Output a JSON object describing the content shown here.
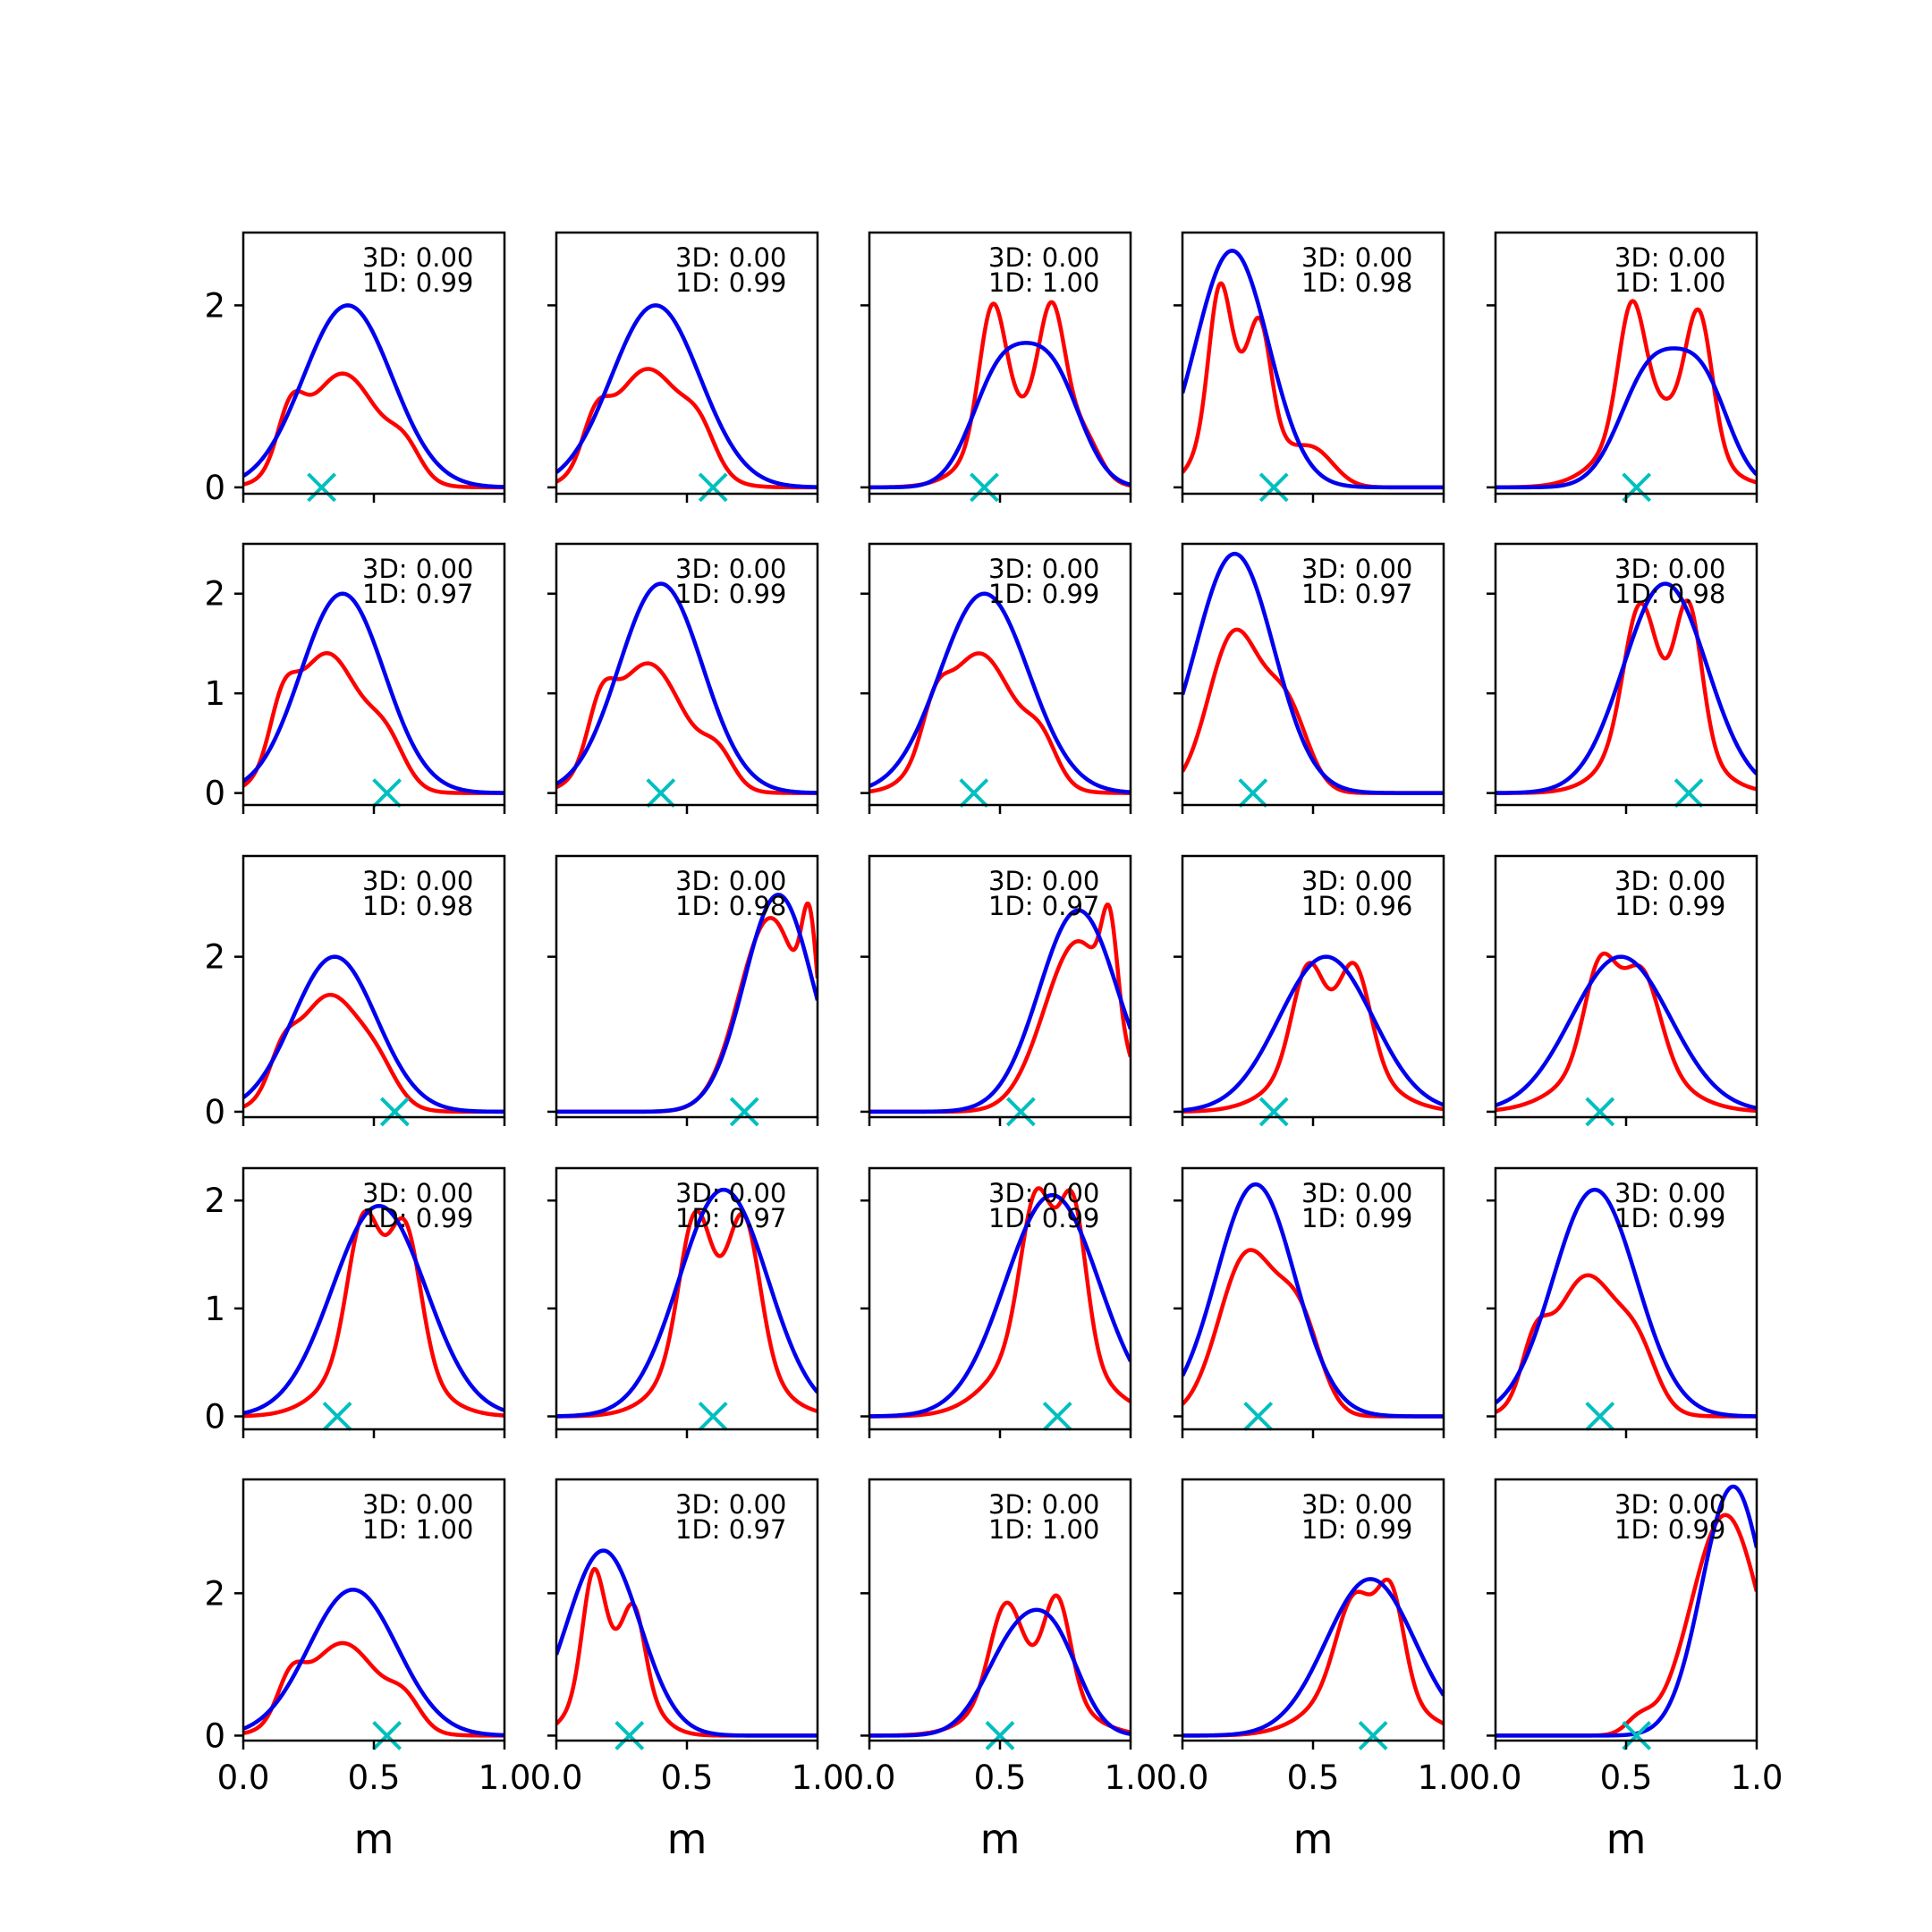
{
  "figure": {
    "colors": {
      "red": "#ff0000",
      "blue": "#0000ee",
      "marker": "#00bfbf",
      "axes": "#000000"
    },
    "annotation_prefix_3d": "3D: ",
    "annotation_prefix_1d": "1D: "
  },
  "chart_data": {
    "type": "line",
    "layout": "5x5 grid of small multiples",
    "xlabel": "m",
    "xlim": [
      0,
      1
    ],
    "xticks": [
      0.0,
      0.5,
      1.0
    ],
    "xtick_labels": [
      "0.0",
      "0.5",
      "1.0"
    ],
    "series_names": [
      "red",
      "blue"
    ],
    "rows": [
      {
        "ylim": [
          -0.07,
          2.8
        ],
        "yticks": [
          0,
          2
        ],
        "ytick_labels": [
          "0",
          "2"
        ]
      },
      {
        "ylim": [
          -0.12,
          2.5
        ],
        "yticks": [
          0,
          1,
          2
        ],
        "ytick_labels": [
          "0",
          "1",
          "2"
        ]
      },
      {
        "ylim": [
          -0.07,
          3.3
        ],
        "yticks": [
          0,
          2
        ],
        "ytick_labels": [
          "0",
          "2"
        ]
      },
      {
        "ylim": [
          -0.12,
          2.3
        ],
        "yticks": [
          0,
          1,
          2
        ],
        "ytick_labels": [
          "0",
          "1",
          "2"
        ]
      },
      {
        "ylim": [
          -0.07,
          3.6
        ],
        "yticks": [
          0,
          2
        ],
        "ytick_labels": [
          "0",
          "2"
        ]
      }
    ],
    "panels": [
      {
        "row": 0,
        "col": 0,
        "label_3d": "0.00",
        "label_1d": "0.99",
        "marker_x": 0.3,
        "red": [
          {
            "x": 0.38,
            "h": 1.25,
            "w": 0.14
          },
          {
            "x": 0.18,
            "h": 0.55,
            "w": 0.05
          },
          {
            "x": 0.62,
            "h": 0.3,
            "w": 0.06
          }
        ],
        "blue": [
          {
            "x": 0.4,
            "h": 2.0,
            "w": 0.17
          }
        ]
      },
      {
        "row": 0,
        "col": 1,
        "label_3d": "0.00",
        "label_1d": "0.99",
        "marker_x": 0.6,
        "red": [
          {
            "x": 0.35,
            "h": 1.3,
            "w": 0.14
          },
          {
            "x": 0.15,
            "h": 0.45,
            "w": 0.05
          },
          {
            "x": 0.55,
            "h": 0.35,
            "w": 0.06
          }
        ],
        "blue": [
          {
            "x": 0.38,
            "h": 2.0,
            "w": 0.17
          }
        ]
      },
      {
        "row": 0,
        "col": 2,
        "label_3d": "0.00",
        "label_1d": "1.00",
        "marker_x": 0.44,
        "red": [
          {
            "x": 0.47,
            "h": 1.4,
            "w": 0.05
          },
          {
            "x": 0.7,
            "h": 1.4,
            "w": 0.05
          },
          {
            "x": 0.58,
            "h": 0.8,
            "w": 0.15
          },
          {
            "x": 0.82,
            "h": 0.4,
            "w": 0.06
          }
        ],
        "blue": [
          {
            "x": 0.5,
            "h": 1.2,
            "w": 0.11
          },
          {
            "x": 0.7,
            "h": 1.2,
            "w": 0.11
          }
        ]
      },
      {
        "row": 0,
        "col": 3,
        "label_3d": "0.00",
        "label_1d": "0.98",
        "marker_x": 0.35,
        "red": [
          {
            "x": 0.14,
            "h": 1.3,
            "w": 0.04
          },
          {
            "x": 0.3,
            "h": 0.9,
            "w": 0.04
          },
          {
            "x": 0.22,
            "h": 1.2,
            "w": 0.11
          },
          {
            "x": 0.5,
            "h": 0.4,
            "w": 0.08
          }
        ],
        "blue": [
          {
            "x": 0.19,
            "h": 2.6,
            "w": 0.14
          }
        ]
      },
      {
        "row": 0,
        "col": 4,
        "label_3d": "0.00",
        "label_1d": "1.00",
        "marker_x": 0.54,
        "red": [
          {
            "x": 0.52,
            "h": 1.3,
            "w": 0.05
          },
          {
            "x": 0.78,
            "h": 1.4,
            "w": 0.05
          },
          {
            "x": 0.62,
            "h": 0.9,
            "w": 0.16
          }
        ],
        "blue": [
          {
            "x": 0.6,
            "h": 1.3,
            "w": 0.12
          },
          {
            "x": 0.8,
            "h": 1.0,
            "w": 0.1
          }
        ]
      },
      {
        "row": 1,
        "col": 0,
        "label_3d": "0.00",
        "label_1d": "0.97",
        "marker_x": 0.55,
        "red": [
          {
            "x": 0.32,
            "h": 1.4,
            "w": 0.13
          },
          {
            "x": 0.15,
            "h": 0.5,
            "w": 0.05
          },
          {
            "x": 0.55,
            "h": 0.4,
            "w": 0.07
          }
        ],
        "blue": [
          {
            "x": 0.38,
            "h": 2.0,
            "w": 0.16
          }
        ]
      },
      {
        "row": 1,
        "col": 1,
        "label_3d": "0.00",
        "label_1d": "0.99",
        "marker_x": 0.4,
        "red": [
          {
            "x": 0.35,
            "h": 1.3,
            "w": 0.14
          },
          {
            "x": 0.17,
            "h": 0.5,
            "w": 0.05
          },
          {
            "x": 0.62,
            "h": 0.3,
            "w": 0.06
          }
        ],
        "blue": [
          {
            "x": 0.4,
            "h": 2.1,
            "w": 0.16
          }
        ]
      },
      {
        "row": 1,
        "col": 2,
        "label_3d": "0.00",
        "label_1d": "0.99",
        "marker_x": 0.4,
        "red": [
          {
            "x": 0.42,
            "h": 1.4,
            "w": 0.14
          },
          {
            "x": 0.25,
            "h": 0.4,
            "w": 0.05
          },
          {
            "x": 0.66,
            "h": 0.35,
            "w": 0.06
          }
        ],
        "blue": [
          {
            "x": 0.44,
            "h": 2.0,
            "w": 0.17
          }
        ]
      },
      {
        "row": 1,
        "col": 3,
        "label_3d": "0.00",
        "label_1d": "0.97",
        "marker_x": 0.27,
        "red": [
          {
            "x": 0.2,
            "h": 1.6,
            "w": 0.1
          },
          {
            "x": 0.4,
            "h": 0.8,
            "w": 0.08
          }
        ],
        "blue": [
          {
            "x": 0.2,
            "h": 2.4,
            "w": 0.15
          }
        ]
      },
      {
        "row": 1,
        "col": 4,
        "label_3d": "0.00",
        "label_1d": "0.98",
        "marker_x": 0.74,
        "red": [
          {
            "x": 0.55,
            "h": 1.2,
            "w": 0.06
          },
          {
            "x": 0.74,
            "h": 1.3,
            "w": 0.05
          },
          {
            "x": 0.63,
            "h": 0.8,
            "w": 0.15
          }
        ],
        "blue": [
          {
            "x": 0.65,
            "h": 2.1,
            "w": 0.16
          }
        ]
      },
      {
        "row": 2,
        "col": 0,
        "label_3d": "0.00",
        "label_1d": "0.98",
        "marker_x": 0.58,
        "red": [
          {
            "x": 0.33,
            "h": 1.5,
            "w": 0.13
          },
          {
            "x": 0.15,
            "h": 0.4,
            "w": 0.05
          },
          {
            "x": 0.52,
            "h": 0.3,
            "w": 0.07
          }
        ],
        "blue": [
          {
            "x": 0.35,
            "h": 2.0,
            "w": 0.16
          }
        ]
      },
      {
        "row": 2,
        "col": 1,
        "label_3d": "0.00",
        "label_1d": "0.98",
        "marker_x": 0.72,
        "red": [
          {
            "x": 0.82,
            "h": 2.5,
            "w": 0.12
          },
          {
            "x": 0.97,
            "h": 1.5,
            "w": 0.03
          }
        ],
        "blue": [
          {
            "x": 0.85,
            "h": 2.8,
            "w": 0.13
          }
        ]
      },
      {
        "row": 2,
        "col": 2,
        "label_3d": "0.00",
        "label_1d": "0.97",
        "marker_x": 0.58,
        "red": [
          {
            "x": 0.8,
            "h": 2.2,
            "w": 0.13
          },
          {
            "x": 0.92,
            "h": 1.2,
            "w": 0.03
          }
        ],
        "blue": [
          {
            "x": 0.8,
            "h": 2.6,
            "w": 0.15
          }
        ]
      },
      {
        "row": 2,
        "col": 3,
        "label_3d": "0.00",
        "label_1d": "0.96",
        "marker_x": 0.35,
        "red": [
          {
            "x": 0.48,
            "h": 1.2,
            "w": 0.06
          },
          {
            "x": 0.66,
            "h": 1.2,
            "w": 0.06
          },
          {
            "x": 0.57,
            "h": 0.8,
            "w": 0.17
          }
        ],
        "blue": [
          {
            "x": 0.55,
            "h": 2.0,
            "w": 0.18
          }
        ]
      },
      {
        "row": 2,
        "col": 4,
        "label_3d": "0.00",
        "label_1d": "0.99",
        "marker_x": 0.4,
        "red": [
          {
            "x": 0.4,
            "h": 1.2,
            "w": 0.06
          },
          {
            "x": 0.56,
            "h": 1.1,
            "w": 0.07
          },
          {
            "x": 0.48,
            "h": 0.8,
            "w": 0.18
          }
        ],
        "blue": [
          {
            "x": 0.48,
            "h": 2.0,
            "w": 0.19
          }
        ]
      },
      {
        "row": 3,
        "col": 0,
        "label_3d": "0.00",
        "label_1d": "0.99",
        "marker_x": 0.36,
        "red": [
          {
            "x": 0.46,
            "h": 1.2,
            "w": 0.06
          },
          {
            "x": 0.62,
            "h": 1.2,
            "w": 0.06
          },
          {
            "x": 0.52,
            "h": 0.7,
            "w": 0.16
          }
        ],
        "blue": [
          {
            "x": 0.52,
            "h": 1.95,
            "w": 0.18
          }
        ]
      },
      {
        "row": 3,
        "col": 1,
        "label_3d": "0.00",
        "label_1d": "0.97",
        "marker_x": 0.6,
        "red": [
          {
            "x": 0.53,
            "h": 1.2,
            "w": 0.06
          },
          {
            "x": 0.72,
            "h": 1.2,
            "w": 0.06
          },
          {
            "x": 0.62,
            "h": 0.8,
            "w": 0.16
          }
        ],
        "blue": [
          {
            "x": 0.64,
            "h": 2.1,
            "w": 0.17
          }
        ]
      },
      {
        "row": 3,
        "col": 2,
        "label_3d": "0.00",
        "label_1d": "0.99",
        "marker_x": 0.72,
        "red": [
          {
            "x": 0.64,
            "h": 1.3,
            "w": 0.06
          },
          {
            "x": 0.78,
            "h": 1.3,
            "w": 0.05
          },
          {
            "x": 0.68,
            "h": 0.8,
            "w": 0.17
          }
        ],
        "blue": [
          {
            "x": 0.7,
            "h": 2.05,
            "w": 0.18
          }
        ]
      },
      {
        "row": 3,
        "col": 3,
        "label_3d": "0.00",
        "label_1d": "0.99",
        "marker_x": 0.29,
        "red": [
          {
            "x": 0.25,
            "h": 1.5,
            "w": 0.11
          },
          {
            "x": 0.45,
            "h": 0.8,
            "w": 0.08
          }
        ],
        "blue": [
          {
            "x": 0.28,
            "h": 2.15,
            "w": 0.15
          }
        ]
      },
      {
        "row": 3,
        "col": 4,
        "label_3d": "0.00",
        "label_1d": "0.99",
        "marker_x": 0.4,
        "red": [
          {
            "x": 0.35,
            "h": 1.3,
            "w": 0.13
          },
          {
            "x": 0.15,
            "h": 0.45,
            "w": 0.05
          },
          {
            "x": 0.55,
            "h": 0.4,
            "w": 0.07
          }
        ],
        "blue": [
          {
            "x": 0.38,
            "h": 2.1,
            "w": 0.16
          }
        ]
      },
      {
        "row": 4,
        "col": 0,
        "label_3d": "0.00",
        "label_1d": "1.00",
        "marker_x": 0.55,
        "red": [
          {
            "x": 0.38,
            "h": 1.3,
            "w": 0.14
          },
          {
            "x": 0.18,
            "h": 0.5,
            "w": 0.05
          },
          {
            "x": 0.62,
            "h": 0.35,
            "w": 0.06
          }
        ],
        "blue": [
          {
            "x": 0.42,
            "h": 2.05,
            "w": 0.17
          }
        ]
      },
      {
        "row": 4,
        "col": 1,
        "label_3d": "0.00",
        "label_1d": "0.97",
        "marker_x": 0.28,
        "red": [
          {
            "x": 0.14,
            "h": 1.4,
            "w": 0.04
          },
          {
            "x": 0.3,
            "h": 0.9,
            "w": 0.04
          },
          {
            "x": 0.22,
            "h": 1.2,
            "w": 0.11
          }
        ],
        "blue": [
          {
            "x": 0.18,
            "h": 2.6,
            "w": 0.14
          }
        ]
      },
      {
        "row": 4,
        "col": 2,
        "label_3d": "0.00",
        "label_1d": "1.00",
        "marker_x": 0.5,
        "red": [
          {
            "x": 0.52,
            "h": 1.2,
            "w": 0.06
          },
          {
            "x": 0.72,
            "h": 1.3,
            "w": 0.05
          },
          {
            "x": 0.62,
            "h": 0.8,
            "w": 0.16
          }
        ],
        "blue": [
          {
            "x": 0.56,
            "h": 1.3,
            "w": 0.12
          },
          {
            "x": 0.72,
            "h": 1.0,
            "w": 0.1
          }
        ]
      },
      {
        "row": 4,
        "col": 3,
        "label_3d": "0.00",
        "label_1d": "0.99",
        "marker_x": 0.73,
        "red": [
          {
            "x": 0.66,
            "h": 1.2,
            "w": 0.07
          },
          {
            "x": 0.8,
            "h": 1.3,
            "w": 0.05
          },
          {
            "x": 0.7,
            "h": 0.8,
            "w": 0.17
          }
        ],
        "blue": [
          {
            "x": 0.72,
            "h": 2.2,
            "w": 0.17
          }
        ]
      },
      {
        "row": 4,
        "col": 4,
        "label_3d": "0.00",
        "label_1d": "0.99",
        "marker_x": 0.54,
        "red": [
          {
            "x": 0.88,
            "h": 3.1,
            "w": 0.13
          },
          {
            "x": 0.55,
            "h": 0.2,
            "w": 0.05
          }
        ],
        "blue": [
          {
            "x": 0.91,
            "h": 3.5,
            "w": 0.12
          }
        ]
      }
    ]
  }
}
